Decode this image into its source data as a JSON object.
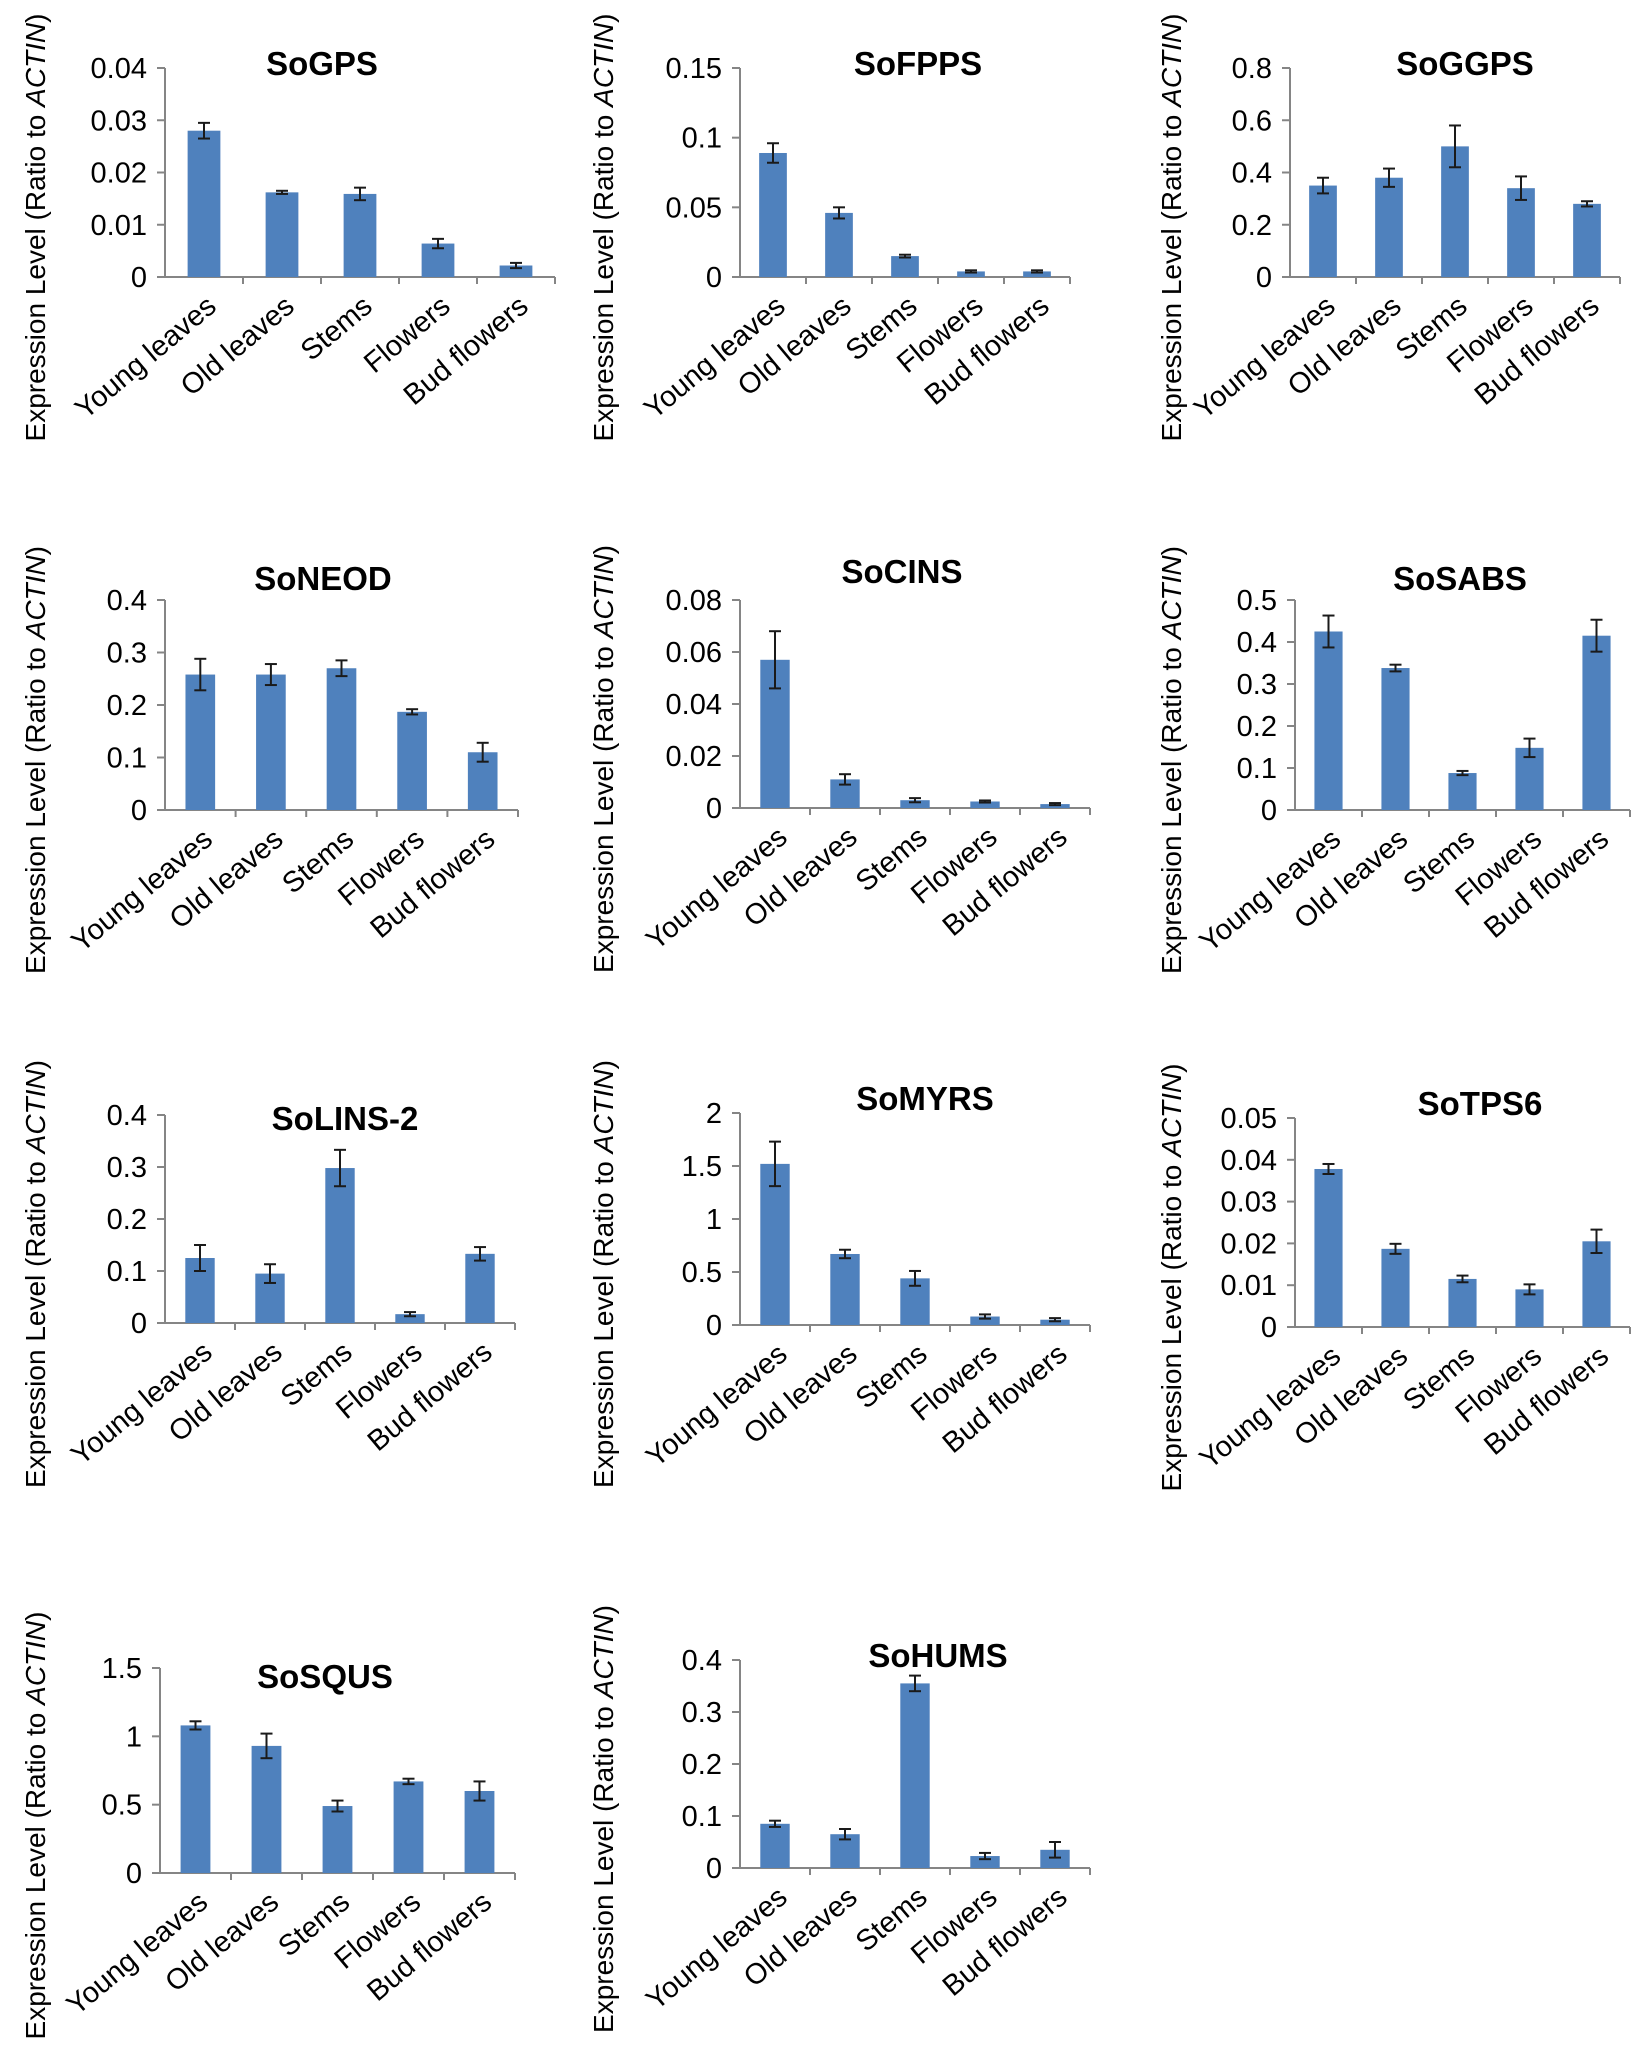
{
  "ylabel_prefix": "Expression Level (Ratio to ",
  "ylabel_gene": "ACTIN",
  "ylabel_suffix": ")",
  "chart_data": [
    {
      "type": "bar",
      "title": "SoGPS",
      "categories": [
        "Young leaves",
        "Old leaves",
        "Stems",
        "Flowers",
        "Bud flowers"
      ],
      "values": [
        0.028,
        0.0162,
        0.0159,
        0.0064,
        0.0022
      ],
      "errors": [
        0.0015,
        0.0003,
        0.0012,
        0.0009,
        0.0005
      ],
      "ylim": [
        0,
        0.04
      ],
      "yticks": [
        "0",
        "0.01",
        "0.02",
        "0.03",
        "0.04"
      ],
      "ylabel": "Expression Level (Ratio to ACTIN)"
    },
    {
      "type": "bar",
      "title": "SoFPPS",
      "categories": [
        "Young leaves",
        "Old leaves",
        "Stems",
        "Flowers",
        "Bud flowers"
      ],
      "values": [
        0.089,
        0.046,
        0.015,
        0.004,
        0.004
      ],
      "errors": [
        0.007,
        0.004,
        0.001,
        0.0008,
        0.0008
      ],
      "ylim": [
        0,
        0.15
      ],
      "yticks": [
        "0",
        "0.05",
        "0.1",
        "0.15"
      ],
      "ylabel": "Expression Level (Ratio to ACTIN)"
    },
    {
      "type": "bar",
      "title": "SoGGPS",
      "categories": [
        "Young leaves",
        "Old leaves",
        "Stems",
        "Flowers",
        "Bud flowers"
      ],
      "values": [
        0.35,
        0.38,
        0.5,
        0.34,
        0.28
      ],
      "errors": [
        0.03,
        0.035,
        0.08,
        0.045,
        0.01
      ],
      "ylim": [
        0,
        0.8
      ],
      "yticks": [
        "0",
        "0.2",
        "0.4",
        "0.6",
        "0.8"
      ],
      "ylabel": "Expression Level (Ratio to ACTIN)"
    },
    {
      "type": "bar",
      "title": "SoNEOD",
      "categories": [
        "Young leaves",
        "Old leaves",
        "Stems",
        "Flowers",
        "Bud flowers"
      ],
      "values": [
        0.258,
        0.258,
        0.27,
        0.187,
        0.11
      ],
      "errors": [
        0.03,
        0.02,
        0.015,
        0.005,
        0.018
      ],
      "ylim": [
        0,
        0.4
      ],
      "yticks": [
        "0",
        "0.1",
        "0.2",
        "0.3",
        "0.4"
      ],
      "ylabel": "Expression Level (Ratio to ACTIN)"
    },
    {
      "type": "bar",
      "title": "SoCINS",
      "categories": [
        "Young leaves",
        "Old leaves",
        "Stems",
        "Flowers",
        "Bud flowers"
      ],
      "values": [
        0.057,
        0.011,
        0.003,
        0.0025,
        0.0015
      ],
      "errors": [
        0.011,
        0.002,
        0.0008,
        0.0004,
        0.0004
      ],
      "ylim": [
        0,
        0.08
      ],
      "yticks": [
        "0",
        "0.02",
        "0.04",
        "0.06",
        "0.08"
      ],
      "ylabel": "Expression Level (Ratio to ACTIN)"
    },
    {
      "type": "bar",
      "title": "SoSABS",
      "categories": [
        "Young leaves",
        "Old leaves",
        "Stems",
        "Flowers",
        "Bud flowers"
      ],
      "values": [
        0.425,
        0.338,
        0.088,
        0.148,
        0.415
      ],
      "errors": [
        0.038,
        0.008,
        0.005,
        0.022,
        0.038
      ],
      "ylim": [
        0,
        0.5
      ],
      "yticks": [
        "0",
        "0.1",
        "0.2",
        "0.3",
        "0.4",
        "0.5"
      ],
      "ylabel": "Expression Level (Ratio to ACTIN)"
    },
    {
      "type": "bar",
      "title": "SoLINS-2",
      "categories": [
        "Young leaves",
        "Old leaves",
        "Stems",
        "Flowers",
        "Bud flowers"
      ],
      "values": [
        0.125,
        0.095,
        0.298,
        0.017,
        0.133
      ],
      "errors": [
        0.025,
        0.018,
        0.035,
        0.004,
        0.013
      ],
      "ylim": [
        0,
        0.4
      ],
      "yticks": [
        "0",
        "0.1",
        "0.2",
        "0.3",
        "0.4"
      ],
      "ylabel": "Expression Level (Ratio to ACTIN)"
    },
    {
      "type": "bar",
      "title": "SoMYRS",
      "categories": [
        "Young leaves",
        "Old leaves",
        "Stems",
        "Flowers",
        "Bud flowers"
      ],
      "values": [
        1.52,
        0.67,
        0.44,
        0.08,
        0.05
      ],
      "errors": [
        0.21,
        0.04,
        0.07,
        0.02,
        0.015
      ],
      "ylim": [
        0,
        2
      ],
      "yticks": [
        "0",
        "0.5",
        "1",
        "1.5",
        "2"
      ],
      "ylabel": "Expression Level (Ratio to ACTIN)"
    },
    {
      "type": "bar",
      "title": "SoTPS6",
      "categories": [
        "Young leaves",
        "Old leaves",
        "Stems",
        "Flowers",
        "Bud flowers"
      ],
      "values": [
        0.0378,
        0.0187,
        0.0115,
        0.009,
        0.0205
      ],
      "errors": [
        0.0012,
        0.0012,
        0.0008,
        0.0012,
        0.0028
      ],
      "ylim": [
        0,
        0.05
      ],
      "yticks": [
        "0",
        "0.01",
        "0.02",
        "0.03",
        "0.04",
        "0.05"
      ],
      "ylabel": "Expression Level (Ratio to ACTIN)"
    },
    {
      "type": "bar",
      "title": "SoSQUS",
      "categories": [
        "Young leaves",
        "Old leaves",
        "Stems",
        "Flowers",
        "Bud flowers"
      ],
      "values": [
        1.08,
        0.93,
        0.49,
        0.67,
        0.6
      ],
      "errors": [
        0.03,
        0.09,
        0.04,
        0.02,
        0.07
      ],
      "ylim": [
        0,
        1.5
      ],
      "yticks": [
        "0",
        "0.5",
        "1",
        "1.5"
      ],
      "ylabel": "Expression Level (Ratio to ACTIN)"
    },
    {
      "type": "bar",
      "title": "SoHUMS",
      "categories": [
        "Young leaves",
        "Old leaves",
        "Stems",
        "Flowers",
        "Bud flowers"
      ],
      "values": [
        0.085,
        0.065,
        0.355,
        0.023,
        0.035
      ],
      "errors": [
        0.006,
        0.01,
        0.015,
        0.006,
        0.015
      ],
      "ylim": [
        0,
        0.4
      ],
      "yticks": [
        "0",
        "0.1",
        "0.2",
        "0.3",
        "0.4"
      ],
      "ylabel": "Expression Level (Ratio to ACTIN)"
    }
  ]
}
